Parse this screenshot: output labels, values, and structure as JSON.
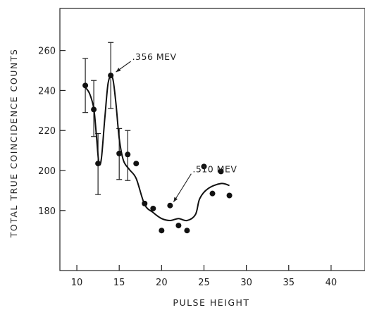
{
  "chart_data": {
    "type": "scatter",
    "title": "",
    "xlabel": "PULSE HEIGHT",
    "ylabel": "TOTAL TRUE COINCIDENCE COUNTS",
    "xlim": [
      8,
      44
    ],
    "ylim": [
      150,
      281
    ],
    "x_ticks": [
      10,
      15,
      20,
      25,
      30,
      35,
      40
    ],
    "y_ticks": [
      180,
      200,
      220,
      240,
      260
    ],
    "grid": false,
    "legend": "none",
    "series": [
      {
        "points": [
          {
            "x": 11.0,
            "y": 242.5
          },
          {
            "x": 12.0,
            "y": 230.5
          },
          {
            "x": 12.5,
            "y": 203.5
          },
          {
            "x": 14.0,
            "y": 247.5
          },
          {
            "x": 15.0,
            "y": 208.5
          },
          {
            "x": 16.0,
            "y": 208.0
          },
          {
            "x": 17.0,
            "y": 203.5
          },
          {
            "x": 18.0,
            "y": 183.5
          },
          {
            "x": 19.0,
            "y": 181.0
          },
          {
            "x": 20.0,
            "y": 170.0
          },
          {
            "x": 21.0,
            "y": 182.5
          },
          {
            "x": 22.0,
            "y": 172.5
          },
          {
            "x": 23.0,
            "y": 170.0
          },
          {
            "x": 25.0,
            "y": 202.0
          },
          {
            "x": 26.0,
            "y": 188.5
          },
          {
            "x": 27.0,
            "y": 199.5
          },
          {
            "x": 28.0,
            "y": 187.5
          }
        ],
        "error_bars": [
          {
            "x": 11.0,
            "low": 229.0,
            "high": 256.0
          },
          {
            "x": 12.0,
            "low": 217.0,
            "high": 245.0
          },
          {
            "x": 12.5,
            "low": 188.0,
            "high": 218.5
          },
          {
            "x": 14.0,
            "low": 231.0,
            "high": 264.0
          },
          {
            "x": 15.0,
            "low": 195.5,
            "high": 221.0
          },
          {
            "x": 16.0,
            "low": 195.0,
            "high": 220.0
          }
        ]
      }
    ],
    "fit_curve": [
      [
        11.0,
        241.5
      ],
      [
        11.5,
        238.5
      ],
      [
        12.0,
        231.0
      ],
      [
        12.3,
        218.0
      ],
      [
        12.6,
        204.0
      ],
      [
        12.9,
        206.0
      ],
      [
        13.3,
        226.0
      ],
      [
        13.7,
        244.0
      ],
      [
        14.2,
        246.5
      ],
      [
        14.6,
        234.0
      ],
      [
        15.0,
        216.0
      ],
      [
        15.5,
        205.0
      ],
      [
        16.2,
        200.5
      ],
      [
        17.0,
        196.0
      ],
      [
        18.0,
        183.0
      ],
      [
        19.0,
        179.0
      ],
      [
        20.0,
        176.0
      ],
      [
        21.0,
        175.0
      ],
      [
        22.0,
        176.0
      ],
      [
        23.0,
        175.0
      ],
      [
        24.0,
        178.0
      ],
      [
        24.5,
        186.0
      ],
      [
        25.5,
        191.0
      ],
      [
        27.0,
        193.5
      ],
      [
        28.0,
        192.5
      ]
    ],
    "annotations": [
      {
        "text": ".356 MEV",
        "x": 14.2,
        "y": 247.5
      },
      {
        "text": ".510 MEV",
        "x": 21.0,
        "y": 182.5
      }
    ]
  }
}
